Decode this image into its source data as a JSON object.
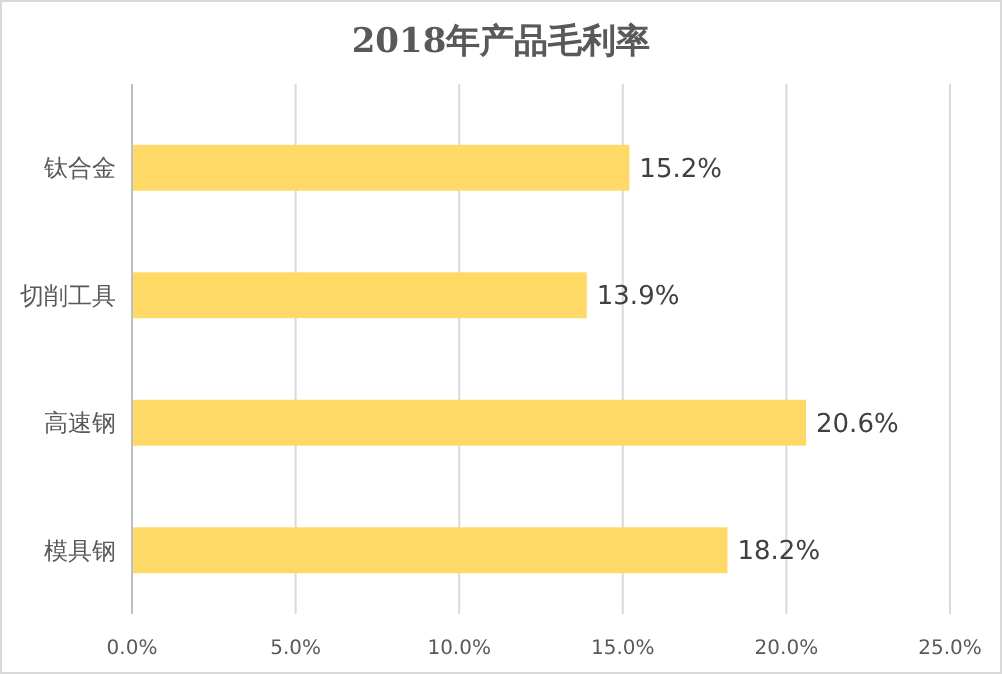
{
  "chart_data": {
    "type": "bar",
    "orientation": "horizontal",
    "title": "2018年产品毛利率",
    "categories": [
      "钛合金",
      "切削工具",
      "高速钢",
      "模具钢"
    ],
    "values": [
      15.2,
      13.9,
      20.6,
      18.2
    ],
    "color": "#ffd966",
    "value_labels": [
      "15.2%",
      "13.9%",
      "20.6%",
      "18.2%"
    ],
    "xlim": [
      0,
      25
    ],
    "xticks": [
      {
        "value": 0,
        "label": "0.0%"
      },
      {
        "value": 5,
        "label": "5.0%"
      },
      {
        "value": 10,
        "label": "10.0%"
      },
      {
        "value": 15,
        "label": "15.0%"
      },
      {
        "value": 20,
        "label": "20.0%"
      },
      {
        "value": 25,
        "label": "25.0%"
      }
    ],
    "grid": "x"
  }
}
